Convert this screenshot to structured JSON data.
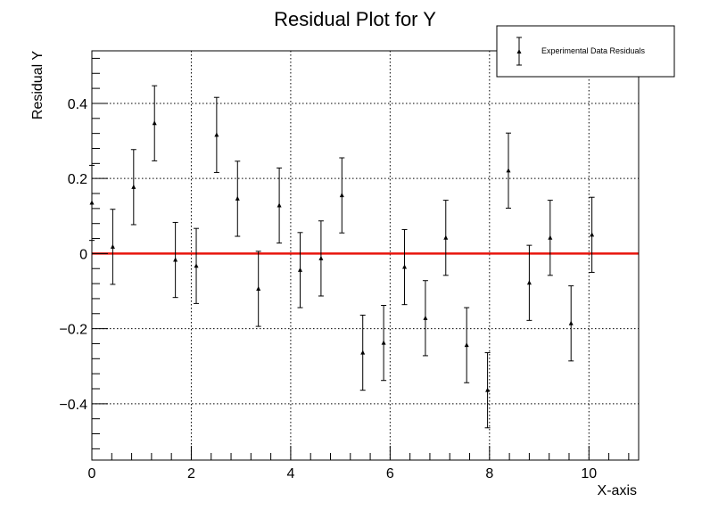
{
  "chart_data": {
    "type": "scatter",
    "title": "Residual Plot for Y",
    "xlabel": "X-axis",
    "ylabel": "Residual Y",
    "xlim": [
      0,
      11
    ],
    "ylim": [
      -0.55,
      0.54
    ],
    "grid": true,
    "legend_position": "top-right",
    "x_ticks": [
      0,
      2,
      4,
      6,
      8,
      10
    ],
    "x_tick_labels": [
      "0",
      "2",
      "4",
      "6",
      "8",
      "10"
    ],
    "y_ticks": [
      -0.4,
      -0.2,
      0,
      0.2,
      0.4
    ],
    "y_tick_labels": [
      "−0.4",
      "−0.2",
      "0",
      "0.2",
      "0.4"
    ],
    "reference_line": {
      "y": 0,
      "color": "#e8140c"
    },
    "series": [
      {
        "name": "Experimental Data Residuals",
        "marker": "triangle",
        "error": 0.1,
        "x": [
          0.0,
          0.42,
          0.84,
          1.26,
          1.68,
          2.1,
          2.51,
          2.93,
          3.35,
          3.77,
          4.19,
          4.61,
          5.03,
          5.45,
          5.87,
          6.29,
          6.71,
          7.12,
          7.54,
          7.96,
          8.38,
          8.8,
          9.22,
          9.64,
          10.06
        ],
        "y": [
          0.135,
          0.018,
          0.177,
          0.347,
          -0.017,
          -0.033,
          0.316,
          0.146,
          -0.094,
          0.128,
          -0.044,
          -0.013,
          0.155,
          -0.264,
          -0.238,
          -0.036,
          -0.172,
          0.042,
          -0.244,
          -0.364,
          0.221,
          -0.078,
          0.042,
          -0.186,
          0.05
        ]
      }
    ]
  }
}
